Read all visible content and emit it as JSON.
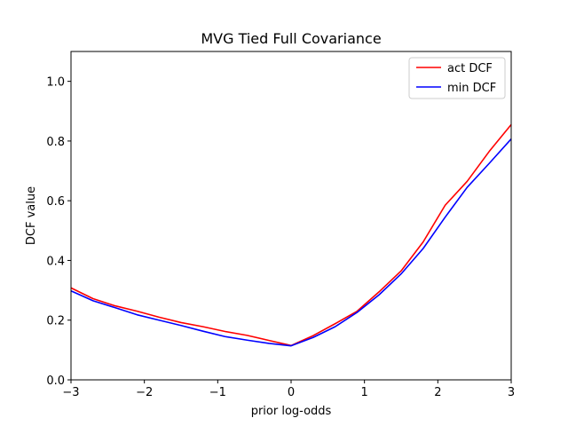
{
  "chart_data": {
    "type": "line",
    "title": "MVG Tied Full Covariance",
    "xlabel": "prior log-odds",
    "ylabel": "DCF value",
    "xlim": [
      -3,
      3
    ],
    "ylim": [
      0,
      1.1
    ],
    "xticks": [
      -3,
      -2,
      -1,
      0,
      1,
      2,
      3
    ],
    "xtick_labels": [
      "−3",
      "−2",
      "−1",
      "0",
      "1",
      "2",
      "3"
    ],
    "yticks": [
      0.0,
      0.2,
      0.4,
      0.6,
      0.8,
      1.0
    ],
    "ytick_labels": [
      "0.0",
      "0.2",
      "0.4",
      "0.6",
      "0.8",
      "1.0"
    ],
    "grid": false,
    "legend_position": "top-right",
    "x": [
      -3.0,
      -2.7,
      -2.4,
      -2.1,
      -1.8,
      -1.5,
      -1.2,
      -0.9,
      -0.6,
      -0.3,
      0.0,
      0.3,
      0.6,
      0.9,
      1.2,
      1.5,
      1.8,
      2.1,
      2.4,
      2.7,
      3.0
    ],
    "series": [
      {
        "name": "act DCF",
        "color": "#ff0000",
        "values": [
          0.308,
          0.272,
          0.248,
          0.23,
          0.21,
          0.192,
          0.178,
          0.162,
          0.149,
          0.132,
          0.115,
          0.148,
          0.188,
          0.23,
          0.295,
          0.365,
          0.462,
          0.585,
          0.665,
          0.765,
          0.855
        ]
      },
      {
        "name": "min DCF",
        "color": "#0000ff",
        "values": [
          0.298,
          0.265,
          0.242,
          0.218,
          0.2,
          0.182,
          0.163,
          0.145,
          0.133,
          0.122,
          0.114,
          0.142,
          0.178,
          0.226,
          0.285,
          0.355,
          0.44,
          0.545,
          0.645,
          0.725,
          0.807
        ]
      }
    ]
  }
}
